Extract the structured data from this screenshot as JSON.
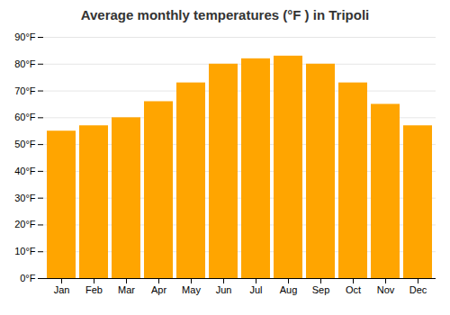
{
  "chart_data": {
    "type": "bar",
    "title": "Average monthly temperatures (°F ) in Tripoli",
    "categories": [
      "Jan",
      "Feb",
      "Mar",
      "Apr",
      "May",
      "Jun",
      "Jul",
      "Aug",
      "Sep",
      "Oct",
      "Nov",
      "Dec"
    ],
    "values": [
      55,
      57,
      60,
      66,
      73,
      80,
      82,
      83,
      80,
      73,
      65,
      57
    ],
    "color": "#FFA500",
    "ylim": [
      0,
      90
    ],
    "yticks": [
      {
        "value": 0,
        "label": "0°F"
      },
      {
        "value": 10,
        "label": "10°F"
      },
      {
        "value": 20,
        "label": "20°F"
      },
      {
        "value": 30,
        "label": "30°F"
      },
      {
        "value": 40,
        "label": "40°F"
      },
      {
        "value": 50,
        "label": "50°F"
      },
      {
        "value": 60,
        "label": "60°F"
      },
      {
        "value": 70,
        "label": "70°F"
      },
      {
        "value": 80,
        "label": "80°F"
      },
      {
        "value": 90,
        "label": "90°F"
      }
    ],
    "grid": true
  }
}
